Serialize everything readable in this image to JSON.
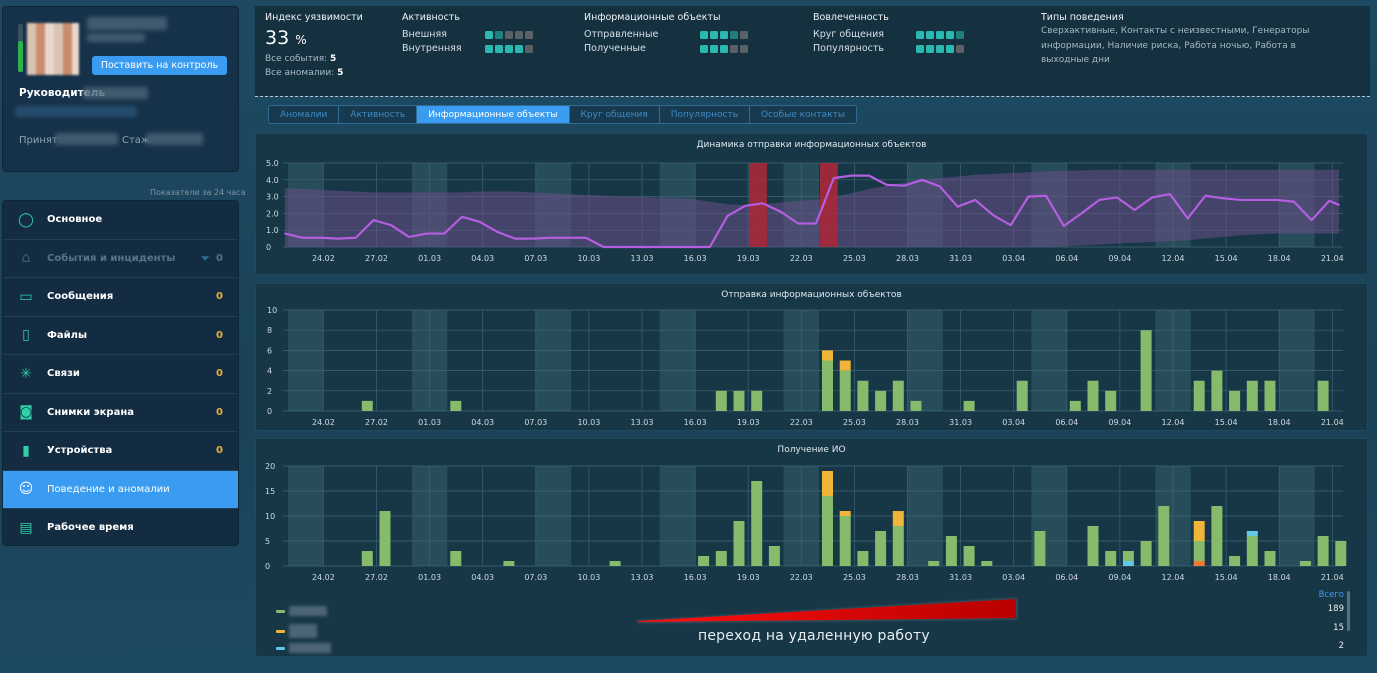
{
  "profile": {
    "control_button": "Поставить на контроль",
    "role_label": "Руководитель",
    "accepted_label": "Принят",
    "experience_label": "Стаж",
    "indicator_level": 0.65,
    "period_hint": "Показатели за 24 часа"
  },
  "nav": {
    "items": [
      {
        "icon": "user-circle-icon",
        "label": "Основное",
        "count": null,
        "state": "normal"
      },
      {
        "icon": "incident-icon",
        "label": "События и инциденты",
        "count": "0",
        "state": "disabled",
        "filter": true
      },
      {
        "icon": "message-icon",
        "label": "Сообщения",
        "count": "0",
        "state": "normal"
      },
      {
        "icon": "file-icon",
        "label": "Файлы",
        "count": "0",
        "state": "normal"
      },
      {
        "icon": "network-icon",
        "label": "Связи",
        "count": "0",
        "state": "normal"
      },
      {
        "icon": "camera-icon",
        "label": "Снимки экрана",
        "count": "0",
        "state": "normal"
      },
      {
        "icon": "usb-device-icon",
        "label": "Устройства",
        "count": "0",
        "state": "normal"
      },
      {
        "icon": "masks-icon",
        "label": "Поведение и аномалии",
        "count": null,
        "state": "active"
      },
      {
        "icon": "work-calendar-icon",
        "label": "Рабочее время",
        "count": null,
        "state": "normal"
      }
    ]
  },
  "stats": {
    "vulnerability": {
      "title": "Индекс уязвимости",
      "value": "33",
      "unit": "%",
      "events_label": "Все события:",
      "events": "5",
      "anomalies_label": "Все аномалии:",
      "anomalies": "5"
    },
    "activity": {
      "title": "Активность",
      "rows": [
        {
          "label": "Внешняя",
          "level": 1,
          "partial": true
        },
        {
          "label": "Внутренняя",
          "level": 4,
          "partial": false
        }
      ]
    },
    "info_objects": {
      "title": "Информационные объекты",
      "rows": [
        {
          "label": "Отправленные",
          "level": 3,
          "partial": true
        },
        {
          "label": "Полученные",
          "level": 3,
          "partial": false
        }
      ]
    },
    "engagement": {
      "title": "Вовлеченность",
      "rows": [
        {
          "label": "Круг общения",
          "level": 4,
          "partial": true
        },
        {
          "label": "Популярность",
          "level": 4,
          "partial": false
        }
      ]
    },
    "behavior": {
      "title": "Типы поведения",
      "text": "Сверхактивные, Контакты с неизвестными, Генераторы информации, Наличие риска, Работа ночью, Работа в выходные дни"
    }
  },
  "tabs": [
    {
      "label": "Аномалии",
      "active": false
    },
    {
      "label": "Активность",
      "active": false
    },
    {
      "label": "Информационные объекты",
      "active": true
    },
    {
      "label": "Круг общения",
      "active": false
    },
    {
      "label": "Популярность",
      "active": false
    },
    {
      "label": "Особые контакты",
      "active": false
    }
  ],
  "colors": {
    "accent": "#3a9cf0",
    "line": "#b45ee0",
    "band": "#6a4f86",
    "anomaly": "#a8283a",
    "weekend": "#2f5560",
    "bar_green": "#85bb6a",
    "bar_yellow": "#f0b43a",
    "bar_cyan": "#62c8e8",
    "bar_orange": "#ef7a34",
    "count_yellow": "#e4b23a"
  },
  "chart_data": [
    {
      "type": "line",
      "title": "Динамика отправки информационных объектов",
      "start_date": "22.02",
      "x_ticks": [
        "24.02",
        "27.02",
        "01.03",
        "04.03",
        "07.03",
        "10.03",
        "13.03",
        "16.03",
        "19.03",
        "22.03",
        "25.03",
        "28.03",
        "31.03",
        "03.04",
        "06.04",
        "09.04",
        "12.04",
        "15.04",
        "18.04",
        "21.04"
      ],
      "y_ticks": [
        "0",
        "1.0",
        "2.0",
        "3.0",
        "4.0",
        "5.0"
      ],
      "ylim": [
        0,
        5
      ],
      "values": [
        0.8,
        0.55,
        0.55,
        0.5,
        0.55,
        1.6,
        1.3,
        0.6,
        0.8,
        0.8,
        1.8,
        1.5,
        0.9,
        0.5,
        0.5,
        0.55,
        0.55,
        0.55,
        0,
        0,
        0,
        0,
        0,
        0,
        0,
        1.85,
        2.45,
        2.6,
        2.1,
        1.4,
        1.4,
        4.1,
        4.25,
        4.25,
        3.7,
        3.65,
        4.0,
        3.6,
        2.4,
        2.8,
        1.9,
        1.3,
        3.0,
        3.05,
        1.25,
        2.0,
        2.8,
        2.95,
        2.2,
        2.95,
        3.15,
        1.7,
        3.05,
        2.9,
        2.8,
        2.8,
        2.8,
        2.7,
        1.6,
        2.75,
        2.5
      ],
      "band_upper": [
        3.5,
        3.45,
        3.4,
        3.35,
        3.3,
        3.25,
        3.25,
        3.25,
        3.25,
        3.25,
        3.25,
        3.3,
        3.3,
        3.3,
        3.25,
        3.2,
        3.15,
        3.1,
        3.05,
        3.0,
        3.0,
        2.95,
        2.9,
        2.85,
        2.7,
        2.55,
        2.5,
        2.55,
        2.65,
        2.75,
        2.8,
        3.0,
        3.2,
        3.45,
        3.65,
        3.85,
        4.0,
        4.1,
        4.2,
        4.3,
        4.35,
        4.4,
        4.45,
        4.5,
        4.55,
        4.55,
        4.6,
        4.6,
        4.6,
        4.6,
        4.6,
        4.6,
        4.6,
        4.6,
        4.6,
        4.6,
        4.6,
        4.6,
        4.6,
        4.6,
        4.6
      ],
      "band_lower": [
        0,
        0,
        0,
        0,
        0,
        0,
        0,
        0,
        0,
        0,
        0,
        0,
        0,
        0,
        0,
        0,
        0,
        0,
        0,
        0,
        0,
        0,
        0,
        0,
        0,
        0,
        0,
        0,
        0,
        0,
        0,
        0,
        0,
        0,
        0,
        0,
        0,
        0,
        0,
        0,
        0,
        0,
        0,
        0,
        0.05,
        0.1,
        0.15,
        0.2,
        0.25,
        0.3,
        0.35,
        0.4,
        0.5,
        0.6,
        0.7,
        0.75,
        0.8,
        0.8,
        0.8,
        0.8,
        0.8
      ],
      "anomaly_days": [
        26,
        30
      ],
      "weekend_days": [
        0,
        1,
        7,
        8,
        14,
        15,
        21,
        22,
        28,
        29,
        35,
        36,
        42,
        43,
        49,
        50,
        56,
        57
      ]
    },
    {
      "type": "bar",
      "stacked": true,
      "title": "Отправка информационных объектов",
      "start_date": "22.02",
      "x_ticks": [
        "24.02",
        "27.02",
        "01.03",
        "04.03",
        "07.03",
        "10.03",
        "13.03",
        "16.03",
        "19.03",
        "22.03",
        "25.03",
        "28.03",
        "31.03",
        "03.04",
        "06.04",
        "09.04",
        "12.04",
        "15.04",
        "18.04",
        "21.04"
      ],
      "y_ticks": [
        "0",
        "2",
        "4",
        "6",
        "8",
        "10"
      ],
      "ylim": [
        0,
        10
      ],
      "series": [
        {
          "name": "green",
          "days": [
            4,
            9,
            24,
            25,
            26,
            30,
            31,
            32,
            33,
            34,
            35,
            38,
            41,
            44,
            45,
            46,
            48,
            51,
            52,
            53,
            54,
            55,
            58
          ],
          "values": [
            1,
            1,
            2,
            2,
            2,
            5,
            4,
            3,
            2,
            3,
            1,
            1,
            3,
            1,
            3,
            2,
            8,
            3,
            4,
            2,
            3,
            3,
            3
          ]
        },
        {
          "name": "yellow",
          "days": [
            30,
            31
          ],
          "values": [
            1,
            1
          ]
        }
      ]
    },
    {
      "type": "bar",
      "stacked": true,
      "title": "Получение ИО",
      "start_date": "22.02",
      "x_ticks": [
        "24.02",
        "27.02",
        "01.03",
        "04.03",
        "07.03",
        "10.03",
        "13.03",
        "16.03",
        "19.03",
        "22.03",
        "25.03",
        "28.03",
        "31.03",
        "03.04",
        "06.04",
        "09.04",
        "12.04",
        "15.04",
        "18.04",
        "21.04"
      ],
      "y_ticks": [
        "0",
        "5",
        "10",
        "15",
        "20"
      ],
      "ylim": [
        0,
        20
      ],
      "series": [
        {
          "name": "orange",
          "days": [
            51
          ],
          "values": [
            1
          ]
        },
        {
          "name": "cyan",
          "days": [
            47
          ],
          "values": [
            1
          ]
        },
        {
          "name": "green",
          "days": [
            4,
            5,
            9,
            12,
            18,
            23,
            24,
            25,
            26,
            27,
            30,
            31,
            32,
            33,
            34,
            36,
            37,
            38,
            39,
            42,
            45,
            46,
            47,
            48,
            49,
            51,
            52,
            53,
            54,
            55,
            57,
            58,
            59
          ],
          "values": [
            3,
            11,
            3,
            1,
            1,
            2,
            3,
            9,
            17,
            4,
            14,
            10,
            3,
            7,
            8,
            1,
            6,
            4,
            1,
            7,
            8,
            3,
            2,
            5,
            12,
            4,
            12,
            2,
            6,
            3,
            1,
            6,
            5
          ]
        },
        {
          "name": "cyan",
          "days": [
            54
          ],
          "values": [
            1
          ]
        },
        {
          "name": "yellow",
          "days": [
            30,
            31,
            34,
            51
          ],
          "values": [
            5,
            1,
            3,
            4
          ]
        }
      ]
    }
  ],
  "legend": {
    "totals_header": "Всего",
    "totals": [
      "189",
      "15",
      "2"
    ],
    "colors": [
      "#85bb6a",
      "#f0b43a",
      "#62c8e8"
    ]
  },
  "annotation": {
    "text": "переход на удаленную работу"
  }
}
